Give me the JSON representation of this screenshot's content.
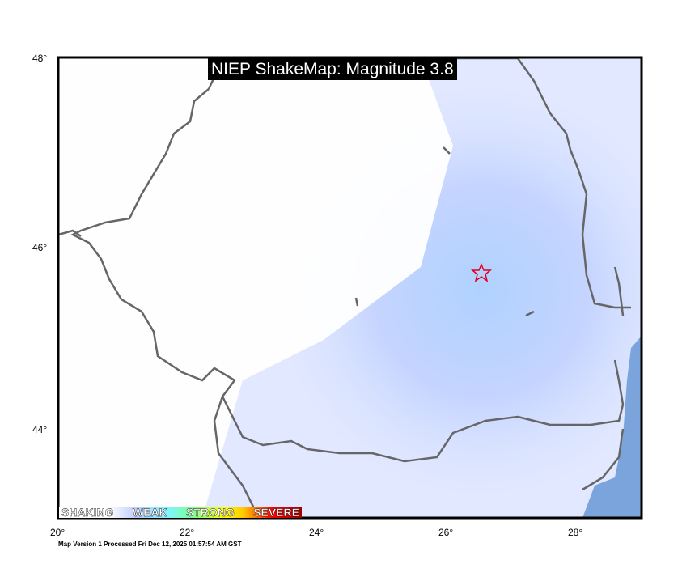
{
  "title": "NIEP ShakeMap: Magnitude 3.8",
  "axes": {
    "lat_ticks": [
      "48°",
      "46°",
      "44°"
    ],
    "lon_ticks": [
      "20°",
      "22°",
      "24°",
      "26°",
      "28°"
    ]
  },
  "legend": {
    "labels": [
      "SHAKING",
      "WEAK",
      "STRONG",
      "SEVERE"
    ]
  },
  "epicenter": {
    "icon": "star-icon",
    "color": "#e0001b",
    "lon": 26.55,
    "lat": 45.72
  },
  "colors": {
    "sea": "#7ba3dc",
    "border": "#666666",
    "shaking_weak": "#b8d4ff"
  },
  "footer": "Map Version 1 Processed Fri Dec 12, 2025 01:57:54 AM GST"
}
